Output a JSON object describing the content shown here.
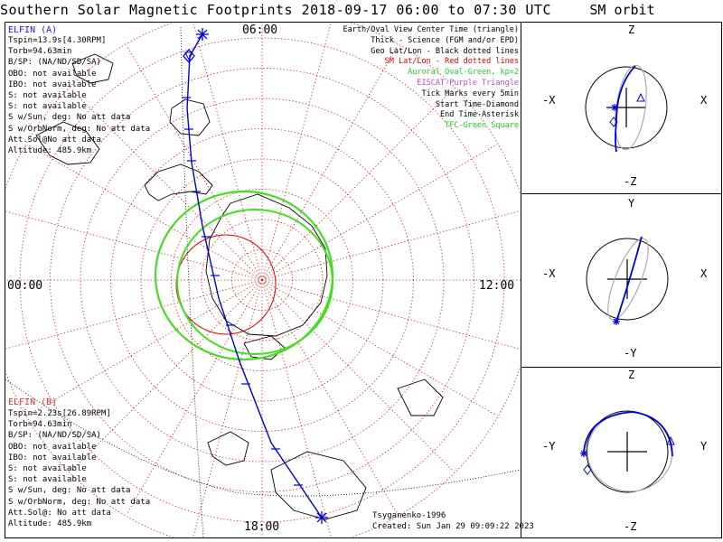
{
  "header": {
    "title": "Southern Solar Magnetic Footprints 2018-09-17 06:00 to 07:30 UTC",
    "sm_title": "SM orbit"
  },
  "clock_labels": {
    "top": "06:00",
    "bottom": "18:00",
    "left": "00:00",
    "right": "12:00"
  },
  "elfin_a": {
    "name": "ELFIN (A)",
    "color": "#1a1aff",
    "lines": [
      "Tspin=13.9s[4.30RPM]",
      "Torb=94.63min",
      "B/SP: (NA/ND/SD/SA)",
      "OBO: not available",
      "IBO: not available",
      "S: not available",
      "S: not available",
      "S w/Sun, deg: No att data",
      "S w/OrbNorm, deg: No att data",
      "Att.Sol@No att data",
      "Altitude: 485.9km"
    ]
  },
  "elfin_b": {
    "name": "ELFIN (B)",
    "color": "#e03030",
    "lines": [
      "Tspin=2.23s[26.89RPM]",
      "Torb=94.63min",
      "B/SP: (NA/ND/SD/SA)",
      "OBO: not available",
      "IBO: not available",
      "S: not available",
      "S: not available",
      "S w/Sun, deg: No att data",
      "S w/OrbNorm, deg: No att data",
      "Att.Sol@: No att data",
      "Altitude: 485.9km"
    ]
  },
  "legend": [
    {
      "text": "Earth/Oval View Center Time (triangle)",
      "color": "#000000"
    },
    {
      "text": "Thick - Science (FGM and/or EPD)",
      "color": "#000000"
    },
    {
      "text": "Geo Lat/Lon - Black dotted lines",
      "color": "#000000"
    },
    {
      "text": "SM Lat/Lon - Red dotted lines",
      "color": "#e00000"
    },
    {
      "text": "Auroral Oval-Green, kp=2",
      "color": "#22cc22"
    },
    {
      "text": "EISCAT-Purple Triangle",
      "color": "#cc44cc"
    },
    {
      "text": "Tick Marks every 5min",
      "color": "#000000"
    },
    {
      "text": "Start Time-Diamond",
      "color": "#000000"
    },
    {
      "text": "End Time-Asterisk",
      "color": "#000000"
    },
    {
      "text": "TFC-Green Square",
      "color": "#22cc22"
    }
  ],
  "footer": {
    "author": "Tsyganenko-1996",
    "created": "Created: Sun Jan 29 09:09:22 2023"
  },
  "sm_panels": [
    {
      "top": "Z",
      "bottom": "-Z",
      "left": "-X",
      "right": "X"
    },
    {
      "top": "Y",
      "bottom": "-Y",
      "left": "-X",
      "right": "X"
    },
    {
      "top": "Z",
      "bottom": "-Z",
      "left": "-Y",
      "right": "Y"
    }
  ],
  "colors": {
    "trace": "#0000dd",
    "oval": "#44dd22",
    "sm_grid": "#dd0000",
    "geo_grid": "#000000"
  }
}
